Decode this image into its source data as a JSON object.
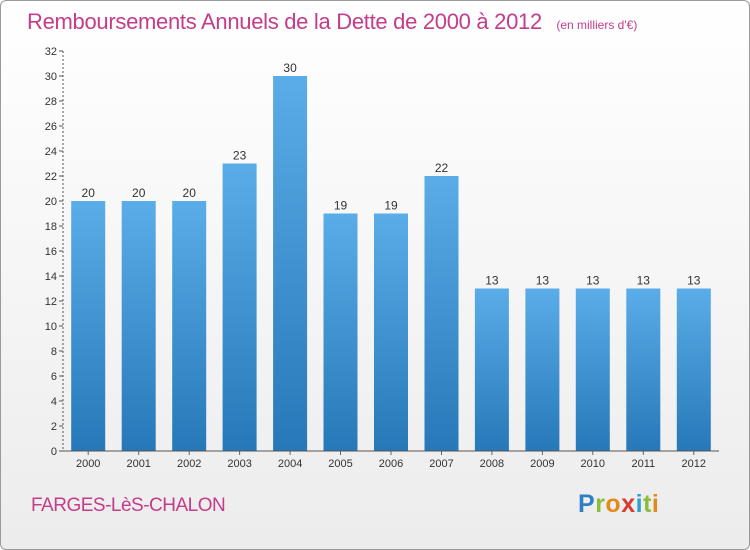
{
  "header": {
    "title": "Remboursements Annuels de la Dette de 2000 à 2012",
    "subtitle": "(en milliers d'€)"
  },
  "footer": {
    "commune": "FARGES-LèS-CHALON",
    "logo_text": "Proxiti",
    "logo_letters": [
      {
        "ch": "P",
        "color": "#2f7fc4"
      },
      {
        "ch": "r",
        "color": "#8dbb3a"
      },
      {
        "ch": "o",
        "color": "#e28a1a"
      },
      {
        "ch": "x",
        "color": "#d63d2e"
      },
      {
        "ch": "i",
        "color": "#2f9fd0"
      },
      {
        "ch": "t",
        "color": "#8dbb3a"
      },
      {
        "ch": "i",
        "color": "#e28a1a"
      }
    ]
  },
  "colors": {
    "bar_top": "#5aade8",
    "bar_bottom": "#2678b8",
    "text": "#333333",
    "accent": "#c43c8a"
  },
  "chart_data": {
    "type": "bar",
    "categories": [
      "2000",
      "2001",
      "2002",
      "2003",
      "2004",
      "2005",
      "2006",
      "2007",
      "2008",
      "2009",
      "2010",
      "2011",
      "2012"
    ],
    "values": [
      20,
      20,
      20,
      23,
      30,
      19,
      19,
      22,
      13,
      13,
      13,
      13,
      13
    ],
    "data_labels": [
      "20",
      "20",
      "20",
      "23",
      "30",
      "19",
      "19",
      "22",
      "13",
      "13",
      "13",
      "13",
      "13"
    ],
    "yticks": [
      "0",
      "2",
      "4",
      "6",
      "8",
      "10",
      "12",
      "14",
      "16",
      "18",
      "20",
      "22",
      "24",
      "26",
      "28",
      "30",
      "32"
    ],
    "ylim": [
      0,
      32
    ],
    "grid": false,
    "legend": "none"
  }
}
